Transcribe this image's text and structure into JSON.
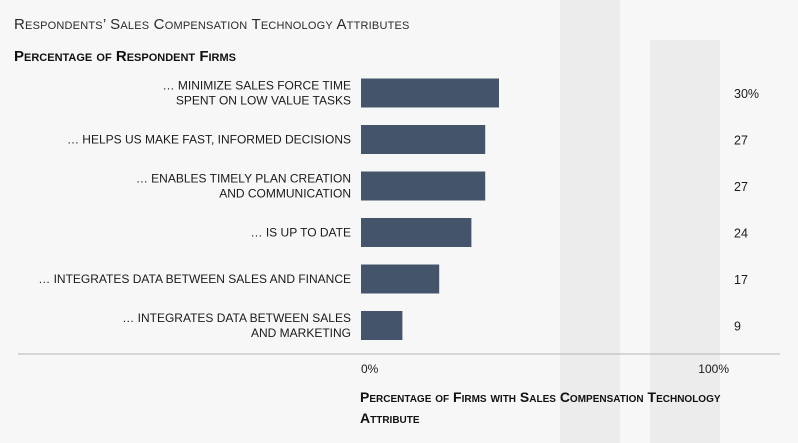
{
  "chart_data": {
    "type": "bar",
    "orientation": "horizontal",
    "title": "Respondents’ Sales Compensation Technology Attributes",
    "subtitle": "Percentage of Respondent Firms",
    "categories": [
      "… MINIMIZE SALES FORCE TIME SPENT ON LOW VALUE TASKS",
      "… HELPS US MAKE FAST, INFORMED DECISIONS",
      "… ENABLES TIMELY PLAN CREATION AND COMMUNICATION",
      "… IS UP TO DATE",
      "… INTEGRATES DATA BETWEEN SALES AND FINANCE",
      "… INTEGRATES DATA BETWEEN SALES AND MARKETING"
    ],
    "values": [
      30,
      27,
      27,
      24,
      17,
      9
    ],
    "value_labels": [
      "30%",
      "27",
      "27",
      "24",
      "17",
      "9"
    ],
    "xlim": [
      0,
      100
    ],
    "x_ticks": [
      "0%",
      "100%"
    ],
    "xlabel": "Percentage of Firms with Sales Compensation Technology Attribute",
    "ylabel": "",
    "grid": false,
    "bar_color": "#44546a"
  }
}
